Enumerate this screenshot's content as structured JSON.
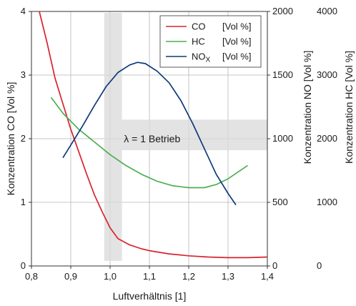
{
  "chart_data": {
    "type": "line",
    "x_axis": {
      "label": "Luftverhältnis [1]",
      "range": [
        0.8,
        1.4
      ],
      "ticks": [
        0.8,
        0.9,
        1.0,
        1.1,
        1.2,
        1.3,
        1.4
      ],
      "tick_labels": [
        "0,8",
        "0,9",
        "1,0",
        "1,1",
        "1,2",
        "1,3",
        "1,4"
      ]
    },
    "y_axes": [
      {
        "id": "co",
        "label": "Konzentration CO [Vol %]",
        "range": [
          0,
          4
        ],
        "ticks": [
          0,
          1,
          2,
          3,
          4
        ],
        "tick_labels": [
          "0",
          "1",
          "2",
          "3",
          "4"
        ]
      },
      {
        "id": "no",
        "label": "Konzentration NO [Vol %]",
        "range": [
          0,
          2000
        ],
        "ticks": [
          0,
          500,
          1000,
          1500,
          2000
        ],
        "tick_labels": [
          "0",
          "500",
          "1000",
          "1500",
          "2000"
        ]
      },
      {
        "id": "hc",
        "label": "Konzentration HC [Vol %]",
        "range": [
          0,
          4000
        ],
        "ticks": [
          0,
          1000,
          2000,
          3000,
          4000
        ],
        "tick_labels": [
          "0",
          "1000",
          "2000",
          "3000",
          "4000"
        ]
      }
    ],
    "grid": true,
    "legend_position": "top-right",
    "series": [
      {
        "key": "co",
        "name": "CO",
        "unit": "[Vol %]",
        "axis": "co",
        "color": "#d9232e",
        "x": [
          0.82,
          0.84,
          0.86,
          0.88,
          0.9,
          0.92,
          0.94,
          0.96,
          0.98,
          1.0,
          1.02,
          1.05,
          1.08,
          1.1,
          1.15,
          1.2,
          1.25,
          1.3,
          1.35,
          1.4
        ],
        "y": [
          4.0,
          3.5,
          2.95,
          2.55,
          2.15,
          1.8,
          1.45,
          1.12,
          0.85,
          0.6,
          0.43,
          0.33,
          0.27,
          0.24,
          0.19,
          0.16,
          0.14,
          0.13,
          0.13,
          0.14
        ]
      },
      {
        "key": "hc",
        "name": "HC",
        "unit": "[Vol %]",
        "axis": "hc",
        "color": "#4caf50",
        "x": [
          0.85,
          0.88,
          0.92,
          0.96,
          1.0,
          1.04,
          1.08,
          1.12,
          1.16,
          1.2,
          1.24,
          1.27,
          1.3,
          1.35
        ],
        "y": [
          2650,
          2400,
          2150,
          1950,
          1750,
          1580,
          1440,
          1330,
          1260,
          1230,
          1230,
          1280,
          1370,
          1580
        ]
      },
      {
        "key": "no",
        "name": "NOX",
        "unit": "[Vol %]",
        "axis": "no",
        "color": "#0d3a7a",
        "x": [
          0.88,
          0.9,
          0.93,
          0.96,
          0.99,
          1.02,
          1.05,
          1.07,
          1.09,
          1.12,
          1.15,
          1.18,
          1.21,
          1.24,
          1.27,
          1.3,
          1.32
        ],
        "y": [
          850,
          950,
          1100,
          1260,
          1410,
          1520,
          1580,
          1600,
          1590,
          1530,
          1440,
          1300,
          1120,
          920,
          720,
          570,
          480
        ]
      }
    ],
    "annotations": [
      {
        "text": "λ = 1 Betrieb"
      }
    ]
  }
}
